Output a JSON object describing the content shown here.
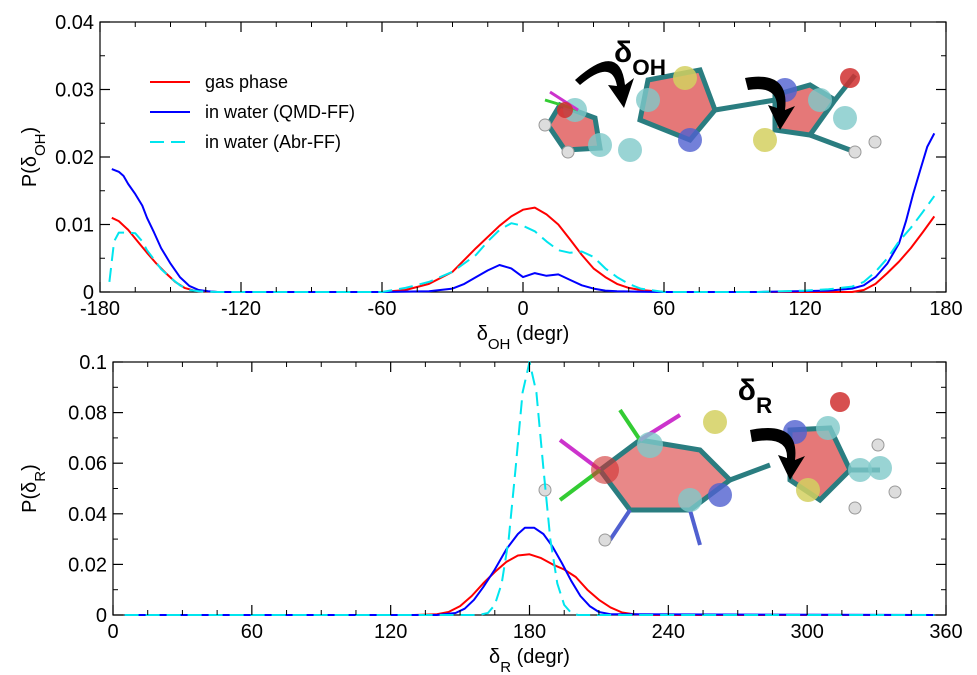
{
  "chart_data": [
    {
      "type": "line",
      "ylabel": "P(δ",
      "ylabel_sub": "OH",
      "ylabel_close": ")",
      "xlabel": "δ",
      "xlabel_sub": "OH",
      "xlabel_unit": " (degr)",
      "xlim": [
        -180,
        180
      ],
      "ylim": [
        0,
        0.04
      ],
      "xticks": [
        "-180",
        "-120",
        "-60",
        "0",
        "60",
        "120",
        "180"
      ],
      "yticks": [
        "0",
        "0.01",
        "0.02",
        "0.03",
        "0.04"
      ],
      "legend": [
        "gas phase",
        "in water (QMD-FF)",
        "in water (Abr-FF)"
      ],
      "molecule_label": "δ",
      "molecule_label_sub": "OH",
      "series": [
        {
          "name": "gas phase",
          "color": "#ff0000",
          "dash": "solid",
          "x": [
            -175,
            -172,
            -168,
            -164,
            -160,
            -156,
            -152,
            -148,
            -144,
            -140,
            -130,
            -100,
            -60,
            -50,
            -40,
            -30,
            -20,
            -10,
            -5,
            0,
            5,
            10,
            15,
            20,
            25,
            30,
            35,
            40,
            45,
            50,
            60,
            100,
            140,
            145,
            150,
            155,
            160,
            165,
            170,
            175
          ],
          "y": [
            0.011,
            0.0105,
            0.0092,
            0.0075,
            0.0058,
            0.0042,
            0.0028,
            0.0015,
            0.0006,
            0.0002,
            0,
            0,
            0,
            0.0003,
            0.0012,
            0.003,
            0.0065,
            0.0098,
            0.0112,
            0.0122,
            0.0125,
            0.0115,
            0.01,
            0.0078,
            0.0055,
            0.0035,
            0.0022,
            0.0012,
            0.0006,
            0.0003,
            0,
            0,
            0,
            0.0003,
            0.0012,
            0.0028,
            0.0045,
            0.0065,
            0.0088,
            0.0112
          ]
        },
        {
          "name": "in water (QMD-FF)",
          "color": "#0000ff",
          "dash": "solid",
          "x": [
            -175,
            -172,
            -170,
            -168,
            -165,
            -162,
            -160,
            -157,
            -154,
            -150,
            -146,
            -142,
            -138,
            -134,
            -130,
            -100,
            -60,
            -40,
            -30,
            -25,
            -20,
            -15,
            -10,
            -5,
            0,
            5,
            10,
            15,
            20,
            25,
            30,
            35,
            40,
            60,
            100,
            130,
            140,
            145,
            150,
            155,
            160,
            163,
            166,
            169,
            172,
            175
          ],
          "y": [
            0.0182,
            0.0178,
            0.0172,
            0.016,
            0.0145,
            0.0128,
            0.011,
            0.0088,
            0.0065,
            0.0042,
            0.0022,
            0.0009,
            0.0003,
            0.0001,
            0,
            0,
            0,
            0.0001,
            0.0005,
            0.0012,
            0.0022,
            0.0032,
            0.004,
            0.0035,
            0.0022,
            0.0028,
            0.0024,
            0.0026,
            0.0018,
            0.001,
            0.0005,
            0.0002,
            0.0001,
            0,
            0,
            0.0002,
            0.0005,
            0.001,
            0.0022,
            0.0042,
            0.0072,
            0.0105,
            0.0145,
            0.018,
            0.0215,
            0.0235
          ]
        },
        {
          "name": "in water (Abr-FF)",
          "color": "#00e5ee",
          "dash": "dashed",
          "x": [
            -176,
            -174,
            -172,
            -168,
            -165,
            -162,
            -160,
            -157,
            -154,
            -150,
            -146,
            -142,
            -138,
            -130,
            -100,
            -60,
            -50,
            -40,
            -30,
            -20,
            -15,
            -10,
            -5,
            0,
            5,
            10,
            15,
            20,
            25,
            30,
            35,
            40,
            45,
            50,
            60,
            100,
            120,
            130,
            140,
            145,
            150,
            155,
            160,
            165,
            170,
            175
          ],
          "y": [
            0.0015,
            0.0075,
            0.0088,
            0.0088,
            0.0087,
            0.0075,
            0.0062,
            0.0048,
            0.0034,
            0.0021,
            0.001,
            0.0003,
            0.0001,
            0,
            0,
            0,
            0.0006,
            0.0015,
            0.003,
            0.0055,
            0.0075,
            0.0092,
            0.0102,
            0.0098,
            0.009,
            0.0075,
            0.0062,
            0.0058,
            0.006,
            0.0052,
            0.0035,
            0.0022,
            0.0012,
            0.0005,
            0,
            0,
            0.0002,
            0.0004,
            0.0008,
            0.0015,
            0.003,
            0.005,
            0.0075,
            0.0095,
            0.0118,
            0.0142
          ]
        }
      ]
    },
    {
      "type": "line",
      "ylabel": "P(δ",
      "ylabel_sub": "R",
      "ylabel_close": ")",
      "xlabel": "δ",
      "xlabel_sub": "R",
      "xlabel_unit": " (degr)",
      "xlim": [
        0,
        360
      ],
      "ylim": [
        0,
        0.1
      ],
      "xticks": [
        "0",
        "60",
        "120",
        "180",
        "240",
        "300",
        "360"
      ],
      "yticks": [
        "0",
        "0.02",
        "0.04",
        "0.06",
        "0.08",
        "0.1"
      ],
      "molecule_label": "δ",
      "molecule_label_sub": "R",
      "series": [
        {
          "name": "gas phase",
          "color": "#ff0000",
          "dash": "solid",
          "x": [
            5,
            130,
            140,
            145,
            150,
            155,
            160,
            165,
            170,
            175,
            180,
            185,
            190,
            195,
            200,
            205,
            210,
            215,
            220,
            225,
            230,
            355
          ],
          "y": [
            0,
            0,
            0.0003,
            0.0012,
            0.0035,
            0.0075,
            0.0125,
            0.017,
            0.021,
            0.0235,
            0.024,
            0.0225,
            0.02,
            0.018,
            0.015,
            0.01,
            0.006,
            0.003,
            0.001,
            0.0003,
            0,
            0
          ]
        },
        {
          "name": "in water (QMD-FF)",
          "color": "#0000ff",
          "dash": "solid",
          "x": [
            5,
            140,
            148,
            152,
            156,
            160,
            165,
            170,
            175,
            178,
            182,
            186,
            190,
            194,
            198,
            202,
            206,
            210,
            215,
            355
          ],
          "y": [
            0,
            0,
            0.0008,
            0.0025,
            0.006,
            0.011,
            0.018,
            0.026,
            0.032,
            0.0345,
            0.0345,
            0.032,
            0.027,
            0.0205,
            0.0135,
            0.0075,
            0.0035,
            0.0012,
            0.0003,
            0
          ]
        },
        {
          "name": "in water (Abr-FF)",
          "color": "#00e5ee",
          "dash": "dashed",
          "x": [
            5,
            158,
            162,
            165,
            168,
            171,
            174,
            177,
            180,
            183,
            186,
            189,
            192,
            195,
            198,
            201,
            355
          ],
          "y": [
            0,
            0,
            0.0008,
            0.004,
            0.0125,
            0.03,
            0.058,
            0.088,
            0.1,
            0.088,
            0.058,
            0.03,
            0.0125,
            0.004,
            0.0008,
            0,
            0
          ]
        }
      ]
    }
  ]
}
